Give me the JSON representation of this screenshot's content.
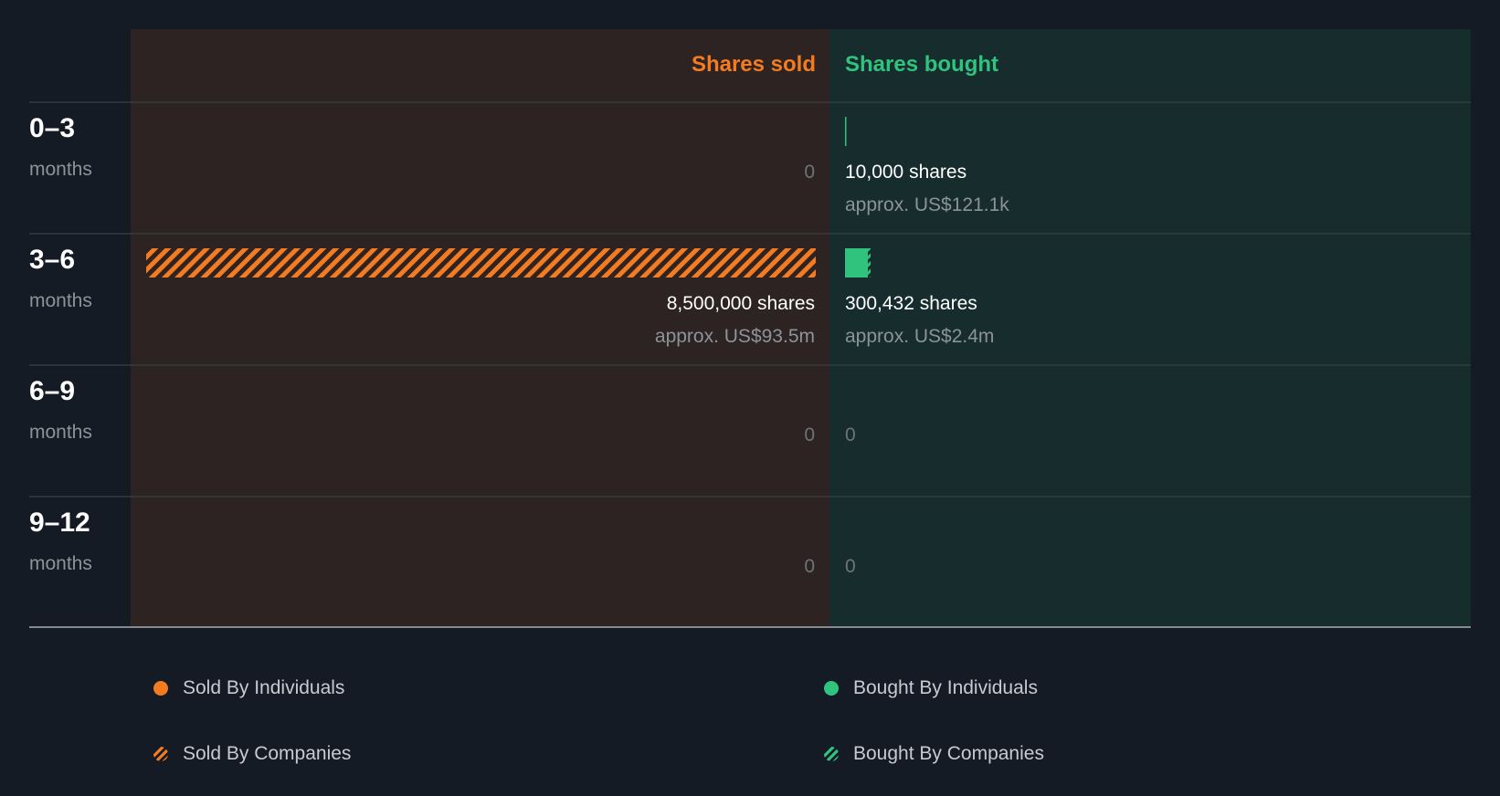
{
  "chart_data": {
    "type": "bar",
    "title": "",
    "unit": "shares",
    "columns": {
      "sold": "Shares sold",
      "bought": "Shares bought"
    },
    "periods": [
      {
        "range": "0–3",
        "unit": "months",
        "sold": {
          "individuals": 0,
          "companies": 0,
          "label": "0",
          "approx": ""
        },
        "bought": {
          "individuals": 10000,
          "companies": 0,
          "label": "10,000 shares",
          "approx": "approx. US$121.1k"
        }
      },
      {
        "range": "3–6",
        "unit": "months",
        "sold": {
          "individuals": 0,
          "companies": 8500000,
          "label": "8,500,000 shares",
          "approx": "approx. US$93.5m"
        },
        "bought": {
          "individuals": 290432,
          "companies": 10000,
          "label": "300,432 shares",
          "approx": "approx. US$2.4m"
        }
      },
      {
        "range": "6–9",
        "unit": "months",
        "sold": {
          "individuals": 0,
          "companies": 0,
          "label": "0",
          "approx": ""
        },
        "bought": {
          "individuals": 0,
          "companies": 0,
          "label": "0",
          "approx": ""
        }
      },
      {
        "range": "9–12",
        "unit": "months",
        "sold": {
          "individuals": 0,
          "companies": 0,
          "label": "0",
          "approx": ""
        },
        "bought": {
          "individuals": 0,
          "companies": 0,
          "label": "0",
          "approx": ""
        }
      }
    ],
    "legend": [
      {
        "label": "Sold By Individuals",
        "style": "solid",
        "color": "#f47b20"
      },
      {
        "label": "Bought By Individuals",
        "style": "solid",
        "color": "#2fc37e"
      },
      {
        "label": "Sold By Companies",
        "style": "hatched",
        "color": "#f47b20"
      },
      {
        "label": "Bought By Companies",
        "style": "hatched",
        "color": "#2fc37e"
      }
    ]
  },
  "colors": {
    "background": "#151b24",
    "sold_panel": "#2c2322",
    "bought_panel": "#172c2c",
    "sold_accent": "#f47b20",
    "bought_accent": "#2fc37e",
    "divider": "#3b4149",
    "baseline": "#a9aeb4",
    "primary_text": "#ffffff",
    "secondary_text": "#8c9399",
    "zero_text": "#6e7479"
  }
}
